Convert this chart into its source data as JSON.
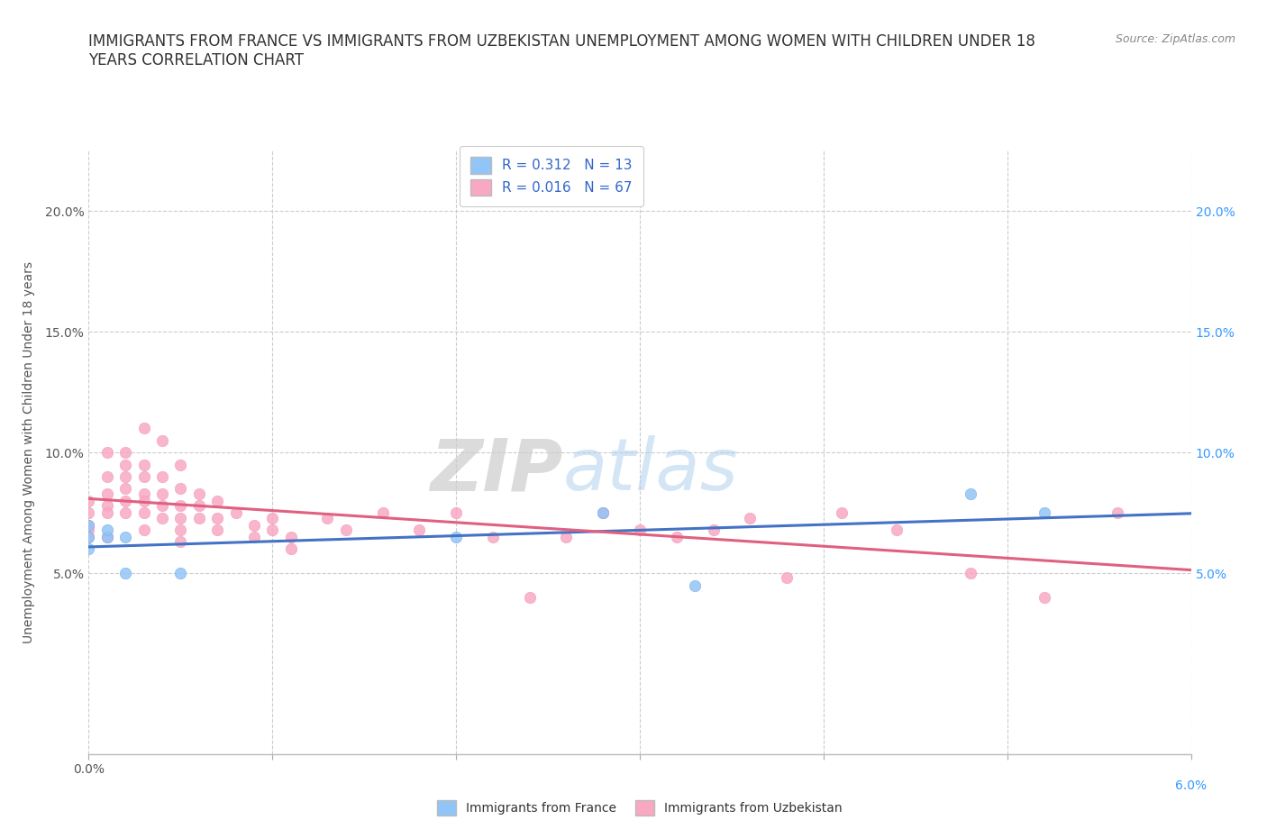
{
  "title": "IMMIGRANTS FROM FRANCE VS IMMIGRANTS FROM UZBEKISTAN UNEMPLOYMENT AMONG WOMEN WITH CHILDREN UNDER 18\nYEARS CORRELATION CHART",
  "source": "Source: ZipAtlas.com",
  "ylabel": "Unemployment Among Women with Children Under 18 years",
  "xlim": [
    0.0,
    0.06
  ],
  "ylim": [
    -0.025,
    0.225
  ],
  "yticks": [
    0.05,
    0.1,
    0.15,
    0.2
  ],
  "ytick_labels": [
    "5.0%",
    "10.0%",
    "15.0%",
    "20.0%"
  ],
  "xticks": [
    0.0,
    0.01,
    0.02,
    0.03,
    0.04,
    0.05,
    0.06
  ],
  "xtick_labels": [
    "0.0%",
    "",
    "",
    "",
    "",
    "",
    "6.0%"
  ],
  "france_color": "#92C5F7",
  "uzbekistan_color": "#F9A8C2",
  "france_line_color": "#4472C4",
  "uzbekistan_line_color": "#E06080",
  "france_R": "0.312",
  "france_N": "13",
  "uzbekistan_R": "0.016",
  "uzbekistan_N": "67",
  "france_scatter_x": [
    0.0,
    0.0,
    0.0,
    0.001,
    0.001,
    0.002,
    0.002,
    0.005,
    0.02,
    0.028,
    0.033,
    0.048,
    0.052
  ],
  "france_scatter_y": [
    0.07,
    0.065,
    0.06,
    0.065,
    0.068,
    0.065,
    0.05,
    0.05,
    0.065,
    0.075,
    0.045,
    0.083,
    0.075
  ],
  "uzbekistan_scatter_x": [
    0.0,
    0.0,
    0.0,
    0.0,
    0.0,
    0.001,
    0.001,
    0.001,
    0.001,
    0.001,
    0.001,
    0.002,
    0.002,
    0.002,
    0.002,
    0.002,
    0.002,
    0.003,
    0.003,
    0.003,
    0.003,
    0.003,
    0.003,
    0.003,
    0.004,
    0.004,
    0.004,
    0.004,
    0.004,
    0.005,
    0.005,
    0.005,
    0.005,
    0.005,
    0.005,
    0.006,
    0.006,
    0.006,
    0.007,
    0.007,
    0.007,
    0.008,
    0.009,
    0.009,
    0.01,
    0.01,
    0.011,
    0.011,
    0.013,
    0.014,
    0.016,
    0.018,
    0.02,
    0.022,
    0.024,
    0.026,
    0.028,
    0.03,
    0.032,
    0.034,
    0.036,
    0.038,
    0.041,
    0.044,
    0.048,
    0.052,
    0.056
  ],
  "uzbekistan_scatter_y": [
    0.07,
    0.075,
    0.08,
    0.068,
    0.065,
    0.1,
    0.09,
    0.083,
    0.078,
    0.075,
    0.065,
    0.1,
    0.095,
    0.09,
    0.085,
    0.08,
    0.075,
    0.11,
    0.095,
    0.09,
    0.083,
    0.08,
    0.075,
    0.068,
    0.105,
    0.09,
    0.083,
    0.078,
    0.073,
    0.095,
    0.085,
    0.078,
    0.073,
    0.068,
    0.063,
    0.083,
    0.078,
    0.073,
    0.08,
    0.073,
    0.068,
    0.075,
    0.07,
    0.065,
    0.073,
    0.068,
    0.065,
    0.06,
    0.073,
    0.068,
    0.075,
    0.068,
    0.075,
    0.065,
    0.04,
    0.065,
    0.075,
    0.068,
    0.065,
    0.068,
    0.073,
    0.048,
    0.075,
    0.068,
    0.05,
    0.04,
    0.075
  ],
  "watermark_zip": "ZIP",
  "watermark_atlas": "atlas",
  "background_color": "#FFFFFF",
  "grid_color": "#CCCCCC",
  "title_fontsize": 12,
  "label_fontsize": 10,
  "tick_fontsize": 10,
  "legend_fontsize": 11,
  "source_fontsize": 9
}
